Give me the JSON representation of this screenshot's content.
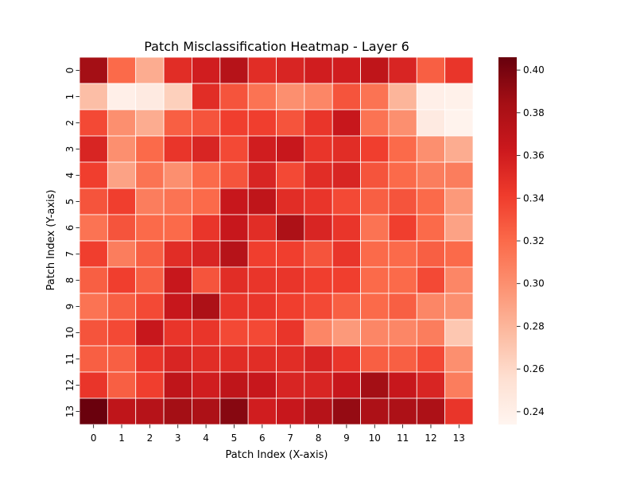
{
  "chart_data": {
    "type": "heatmap",
    "title": "Patch Misclassification Heatmap - Layer 6",
    "xlabel": "Patch Index (X-axis)",
    "ylabel": "Patch Index (Y-axis)",
    "x_ticks": [
      "0",
      "1",
      "2",
      "3",
      "4",
      "5",
      "6",
      "7",
      "8",
      "9",
      "10",
      "11",
      "12",
      "13"
    ],
    "y_ticks": [
      "0",
      "1",
      "2",
      "3",
      "4",
      "5",
      "6",
      "7",
      "8",
      "9",
      "10",
      "11",
      "12",
      "13"
    ],
    "colorbar": {
      "min": 0.234,
      "max": 0.406,
      "ticks": [
        "0.24",
        "0.26",
        "0.28",
        "0.30",
        "0.32",
        "0.34",
        "0.36",
        "0.38",
        "0.40"
      ],
      "colormap": "Reds"
    },
    "grid": false,
    "values": [
      [
        0.385,
        0.32,
        0.285,
        0.35,
        0.36,
        0.375,
        0.35,
        0.355,
        0.36,
        0.36,
        0.37,
        0.355,
        0.325,
        0.345
      ],
      [
        0.275,
        0.24,
        0.245,
        0.265,
        0.35,
        0.33,
        0.315,
        0.3,
        0.305,
        0.33,
        0.315,
        0.28,
        0.24,
        0.238
      ],
      [
        0.335,
        0.3,
        0.285,
        0.325,
        0.33,
        0.34,
        0.34,
        0.33,
        0.345,
        0.365,
        0.315,
        0.3,
        0.245,
        0.236
      ],
      [
        0.355,
        0.3,
        0.32,
        0.345,
        0.355,
        0.335,
        0.36,
        0.365,
        0.345,
        0.35,
        0.34,
        0.32,
        0.3,
        0.285
      ],
      [
        0.34,
        0.29,
        0.315,
        0.3,
        0.32,
        0.33,
        0.355,
        0.335,
        0.35,
        0.355,
        0.33,
        0.32,
        0.31,
        0.31
      ],
      [
        0.33,
        0.34,
        0.31,
        0.315,
        0.32,
        0.365,
        0.37,
        0.35,
        0.345,
        0.335,
        0.325,
        0.33,
        0.32,
        0.295
      ],
      [
        0.315,
        0.33,
        0.32,
        0.32,
        0.345,
        0.365,
        0.35,
        0.38,
        0.355,
        0.345,
        0.315,
        0.34,
        0.32,
        0.29
      ],
      [
        0.34,
        0.31,
        0.325,
        0.35,
        0.355,
        0.375,
        0.34,
        0.34,
        0.33,
        0.345,
        0.32,
        0.32,
        0.325,
        0.32
      ],
      [
        0.325,
        0.34,
        0.325,
        0.365,
        0.33,
        0.35,
        0.345,
        0.345,
        0.34,
        0.34,
        0.32,
        0.32,
        0.335,
        0.305
      ],
      [
        0.315,
        0.325,
        0.335,
        0.365,
        0.38,
        0.345,
        0.345,
        0.34,
        0.335,
        0.325,
        0.32,
        0.325,
        0.305,
        0.3
      ],
      [
        0.33,
        0.335,
        0.365,
        0.345,
        0.345,
        0.335,
        0.335,
        0.345,
        0.305,
        0.295,
        0.305,
        0.305,
        0.31,
        0.27
      ],
      [
        0.325,
        0.325,
        0.345,
        0.355,
        0.35,
        0.35,
        0.35,
        0.35,
        0.355,
        0.345,
        0.325,
        0.325,
        0.335,
        0.3
      ],
      [
        0.345,
        0.325,
        0.34,
        0.37,
        0.36,
        0.37,
        0.365,
        0.355,
        0.355,
        0.365,
        0.385,
        0.365,
        0.355,
        0.31
      ],
      [
        0.405,
        0.37,
        0.375,
        0.385,
        0.38,
        0.395,
        0.36,
        0.365,
        0.375,
        0.39,
        0.38,
        0.38,
        0.38,
        0.345
      ]
    ]
  }
}
